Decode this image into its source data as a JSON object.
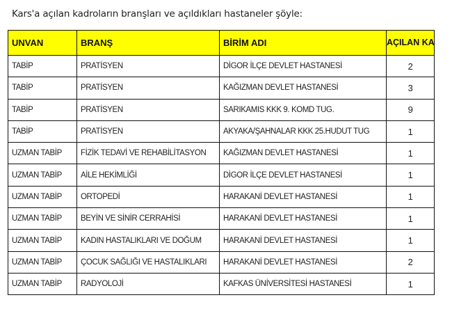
{
  "title": "Kars'a açılan kadroların  branşları ve açıldıkları hastaneler şöyle:",
  "table": {
    "headers": [
      "UNVAN",
      "BRANŞ",
      "BİRİM ADI",
      "AÇILAN KADRO"
    ],
    "header_bg": "#ffff00",
    "rows": [
      [
        "TABİP",
        "PRATİSYEN",
        "DİGOR İLÇE DEVLET HASTANESİ",
        "2"
      ],
      [
        "TABİP",
        "PRATİSYEN",
        "KAĞIZMAN  DEVLET HASTANESİ",
        "3"
      ],
      [
        "TABİP",
        "PRATİSYEN",
        "SARIKAMIS KKK 9. KOMD TUG.",
        "9"
      ],
      [
        "TABİP",
        "PRATİSYEN",
        "AKYAKA/ŞAHNALAR KKK 25.HUDUT TUG",
        "1"
      ],
      [
        "UZMAN TABİP",
        "FİZİK TEDAVİ VE REHABİLİTASYON",
        "KAĞIZMAN DEVLET HASTANESİ",
        "1"
      ],
      [
        "UZMAN TABİP",
        "AİLE HEKİMLİĞİ",
        "DİGOR İLÇE DEVLET HASTANESİ",
        "1"
      ],
      [
        "UZMAN TABİP",
        "ORTOPEDİ",
        "HARAKANİ DEVLET HASTANESİ",
        "1"
      ],
      [
        "UZMAN TABİP",
        "BEYİN  VE SİNİR CERRAHİSİ",
        "HARAKANİ DEVLET HASTANESİ",
        "1"
      ],
      [
        "UZMAN TABİP",
        "KADIN HASTALIKLARI VE DOĞUM",
        "HARAKANİ DEVLET HASTANESİ",
        "1"
      ],
      [
        "UZMAN TABİP",
        "ÇOCUK SAĞLIĞI VE HASTALIKLARI",
        "HARAKANİ DEVLET HASTANESİ",
        "2"
      ],
      [
        "UZMAN TABİP",
        "RADYOLOJİ",
        "KAFKAS ÜNİVERSİTESİ HASTANESİ",
        "1"
      ]
    ]
  }
}
